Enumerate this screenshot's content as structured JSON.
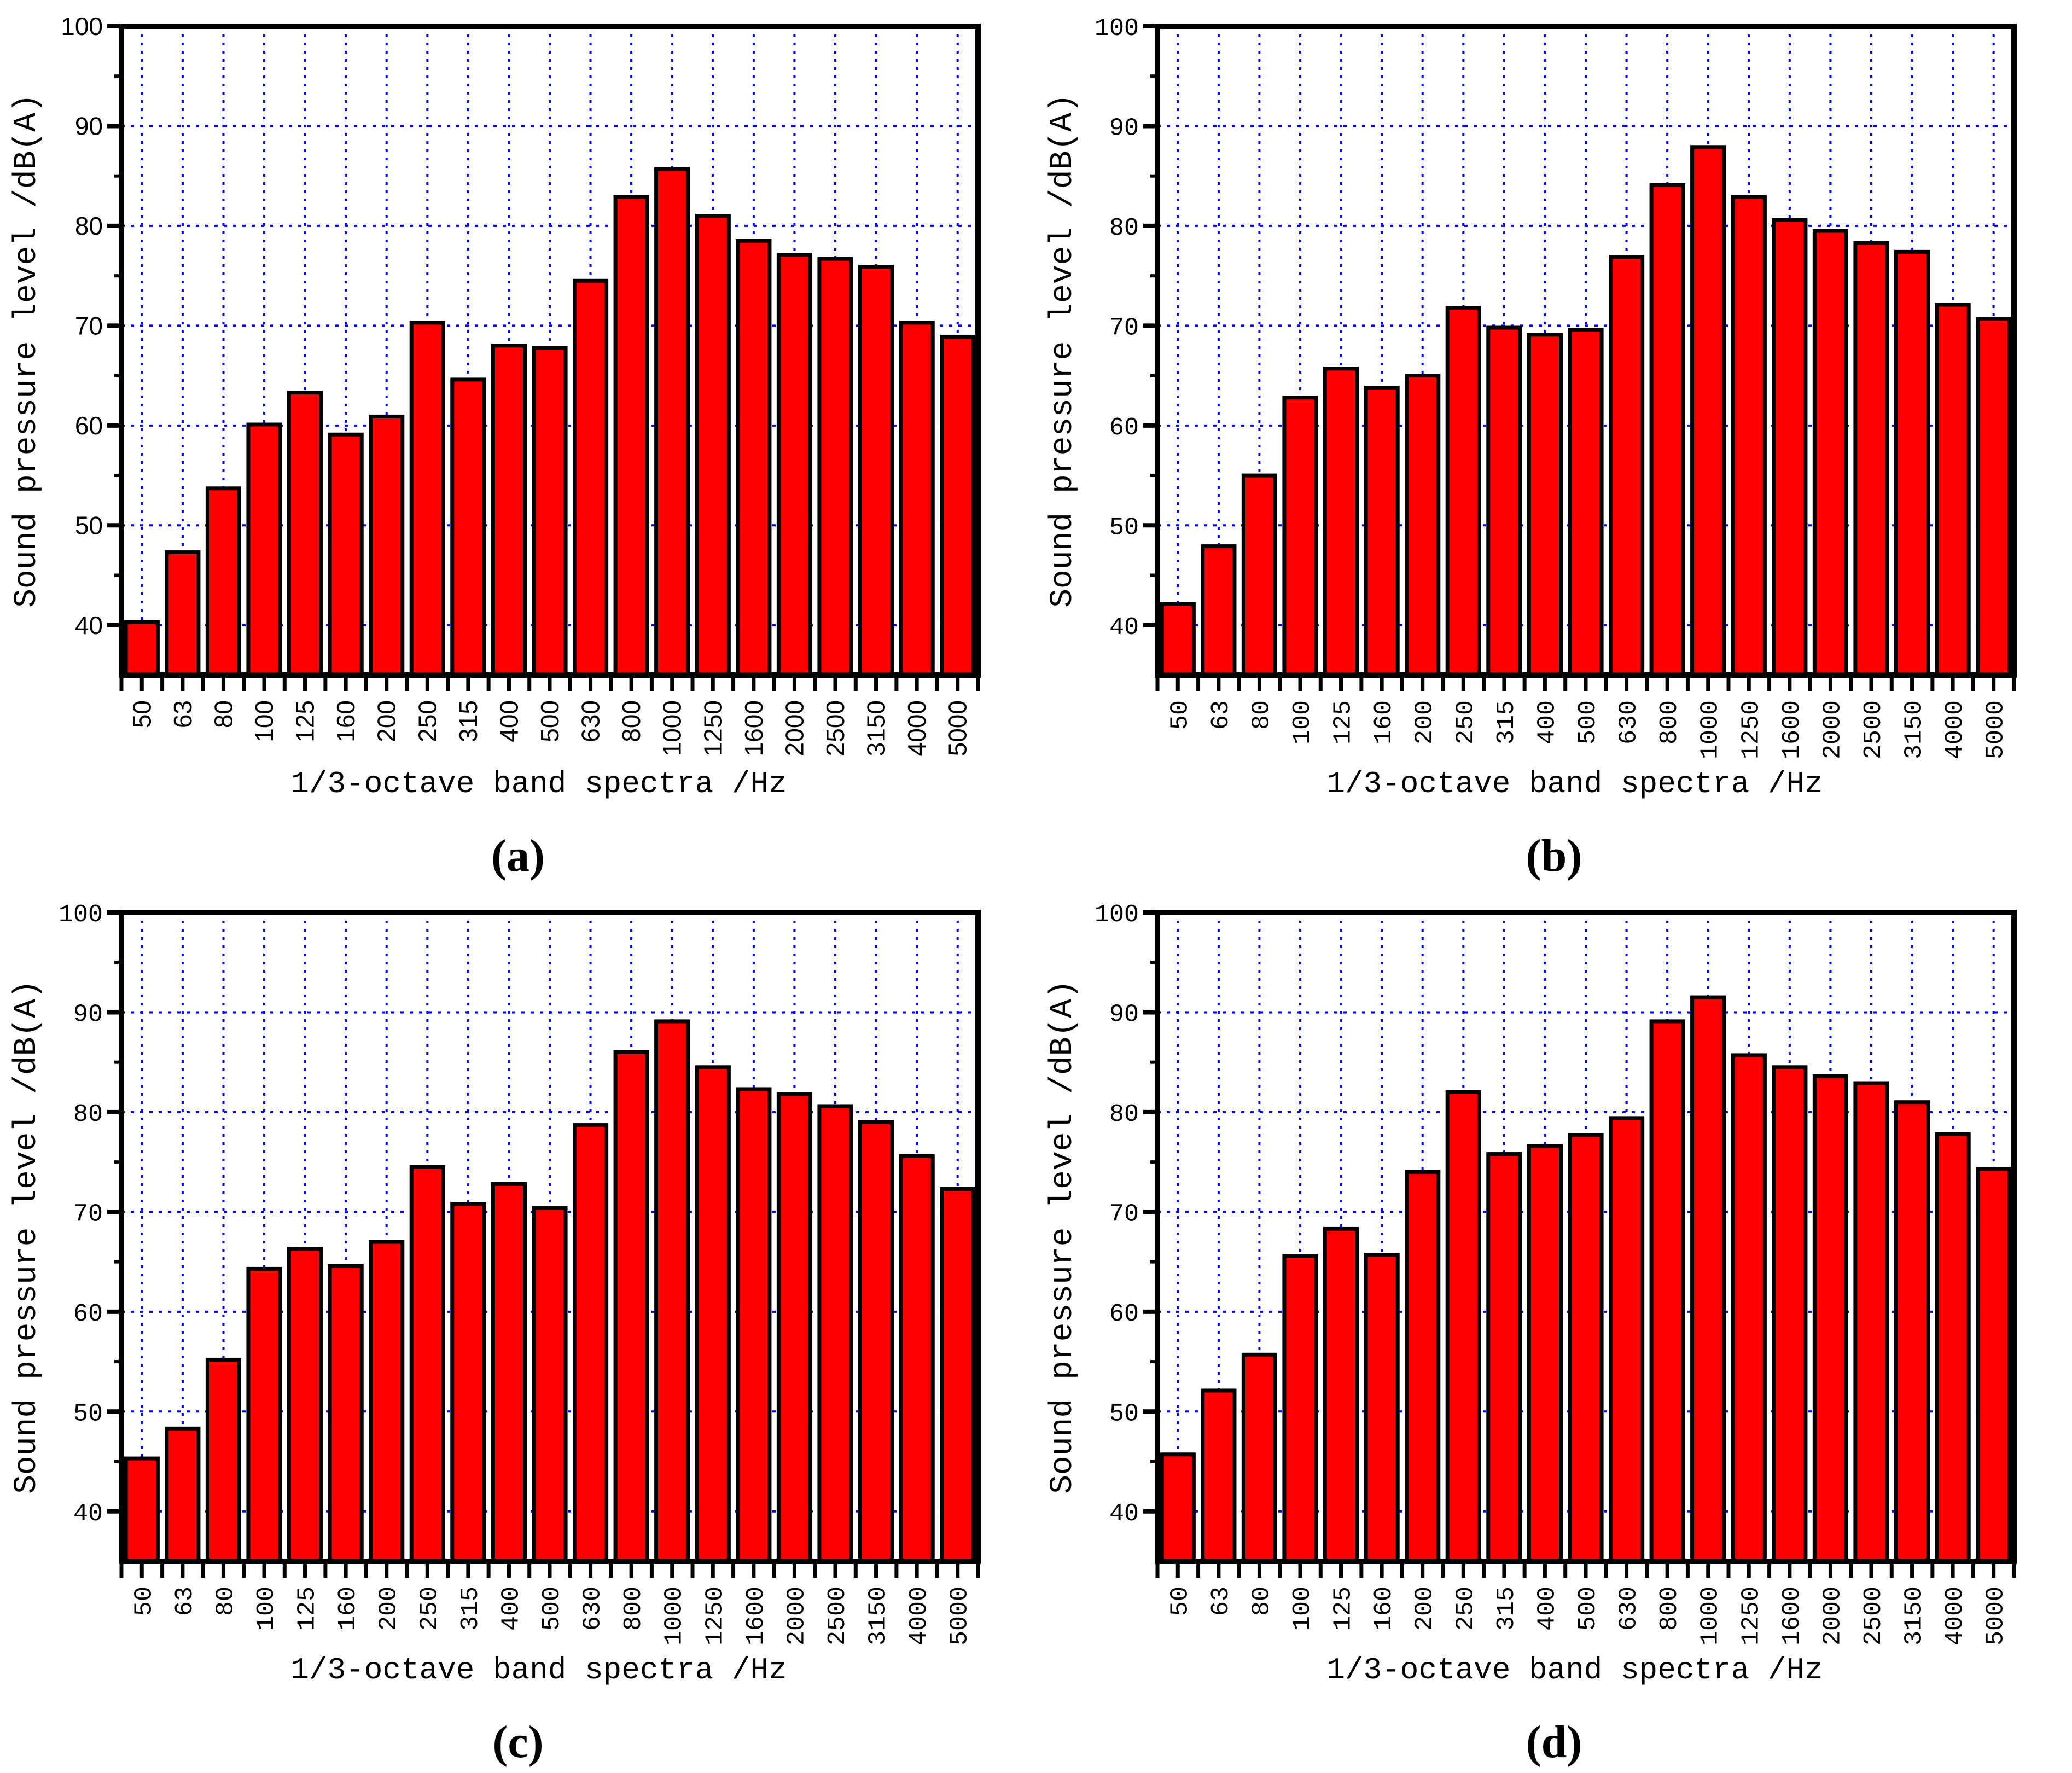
{
  "figure": {
    "background": "#ffffff",
    "description": "Four 1/3-octave band sound pressure level bar spectra panels"
  },
  "chart_data": [
    {
      "type": "bar",
      "sublabel": "(a)",
      "xlabel": "1/3-octave band spectra /Hz",
      "ylabel": "Sound pressure level /dB(A)",
      "categories": [
        "50",
        "63",
        "80",
        "100",
        "125",
        "160",
        "200",
        "250",
        "315",
        "400",
        "500",
        "630",
        "800",
        "1000",
        "1250",
        "1600",
        "2000",
        "2500",
        "3150",
        "4000",
        "5000"
      ],
      "values": [
        40.3,
        47.3,
        53.7,
        60.1,
        63.3,
        59.1,
        60.9,
        70.3,
        64.6,
        68.0,
        67.8,
        74.5,
        82.9,
        85.7,
        81.0,
        78.5,
        77.1,
        76.7,
        75.9,
        70.3,
        68.9
      ],
      "ylim": [
        35,
        100
      ],
      "yticks": [
        40,
        50,
        60,
        70,
        80,
        90,
        100
      ],
      "yticks_minor": [
        45,
        55,
        65,
        75,
        85,
        95
      ],
      "grid": true,
      "legend": "none",
      "bar_color": "#FF0000",
      "bar_edge_color": "#000000",
      "grid_color": "#0000FF",
      "axis_color": "#000000"
    },
    {
      "type": "bar",
      "sublabel": "(b)",
      "xlabel": "1/3-octave band spectra /Hz",
      "ylabel": "Sound pressure level /dB(A)",
      "categories": [
        "50",
        "63",
        "80",
        "100",
        "125",
        "160",
        "200",
        "250",
        "315",
        "400",
        "500",
        "630",
        "800",
        "1000",
        "1250",
        "1600",
        "2000",
        "2500",
        "3150",
        "4000",
        "5000"
      ],
      "values": [
        42.1,
        47.9,
        55.0,
        62.8,
        65.7,
        63.8,
        65.0,
        71.8,
        69.8,
        69.1,
        69.6,
        76.9,
        84.1,
        87.9,
        82.9,
        80.6,
        79.5,
        78.3,
        77.4,
        72.1,
        70.7
      ],
      "ylim": [
        35,
        100
      ],
      "yticks": [
        40,
        50,
        60,
        70,
        80,
        90,
        100
      ],
      "yticks_minor": [
        45,
        55,
        65,
        75,
        85,
        95
      ],
      "grid": true,
      "legend": "none",
      "bar_color": "#FF0000",
      "bar_edge_color": "#000000",
      "grid_color": "#0000FF",
      "axis_color": "#000000"
    },
    {
      "type": "bar",
      "sublabel": "(c)",
      "xlabel": "1/3-octave band spectra /Hz",
      "ylabel": "Sound pressure level /dB(A)",
      "categories": [
        "50",
        "63",
        "80",
        "100",
        "125",
        "160",
        "200",
        "250",
        "315",
        "400",
        "500",
        "630",
        "800",
        "1000",
        "1250",
        "1600",
        "2000",
        "2500",
        "3150",
        "4000",
        "5000"
      ],
      "values": [
        45.3,
        48.3,
        55.2,
        64.3,
        66.3,
        64.6,
        67.0,
        74.5,
        70.8,
        72.8,
        70.4,
        78.7,
        86.0,
        89.1,
        84.5,
        82.3,
        81.8,
        80.6,
        79.0,
        75.6,
        72.3
      ],
      "ylim": [
        35,
        100
      ],
      "yticks": [
        40,
        50,
        60,
        70,
        80,
        90,
        100
      ],
      "yticks_minor": [
        45,
        55,
        65,
        75,
        85,
        95
      ],
      "grid": true,
      "legend": "none",
      "bar_color": "#FF0000",
      "bar_edge_color": "#000000",
      "grid_color": "#0000FF",
      "axis_color": "#000000"
    },
    {
      "type": "bar",
      "sublabel": "(d)",
      "xlabel": "1/3-octave band spectra /Hz",
      "ylabel": "Sound pressure level /dB(A)",
      "categories": [
        "50",
        "63",
        "80",
        "100",
        "125",
        "160",
        "200",
        "250",
        "315",
        "400",
        "500",
        "630",
        "800",
        "1000",
        "1250",
        "1600",
        "2000",
        "2500",
        "3150",
        "4000",
        "5000"
      ],
      "values": [
        45.7,
        52.1,
        55.7,
        65.6,
        68.3,
        65.7,
        74.0,
        82.0,
        75.8,
        76.6,
        77.7,
        79.4,
        89.1,
        91.5,
        85.7,
        84.5,
        83.6,
        82.9,
        81.0,
        77.8,
        74.3
      ],
      "ylim": [
        35,
        100
      ],
      "yticks": [
        40,
        50,
        60,
        70,
        80,
        90,
        100
      ],
      "yticks_minor": [
        45,
        55,
        65,
        75,
        85,
        95
      ],
      "grid": true,
      "legend": "none",
      "bar_color": "#FF0000",
      "bar_edge_color": "#000000",
      "grid_color": "#0000FF",
      "axis_color": "#000000"
    }
  ]
}
